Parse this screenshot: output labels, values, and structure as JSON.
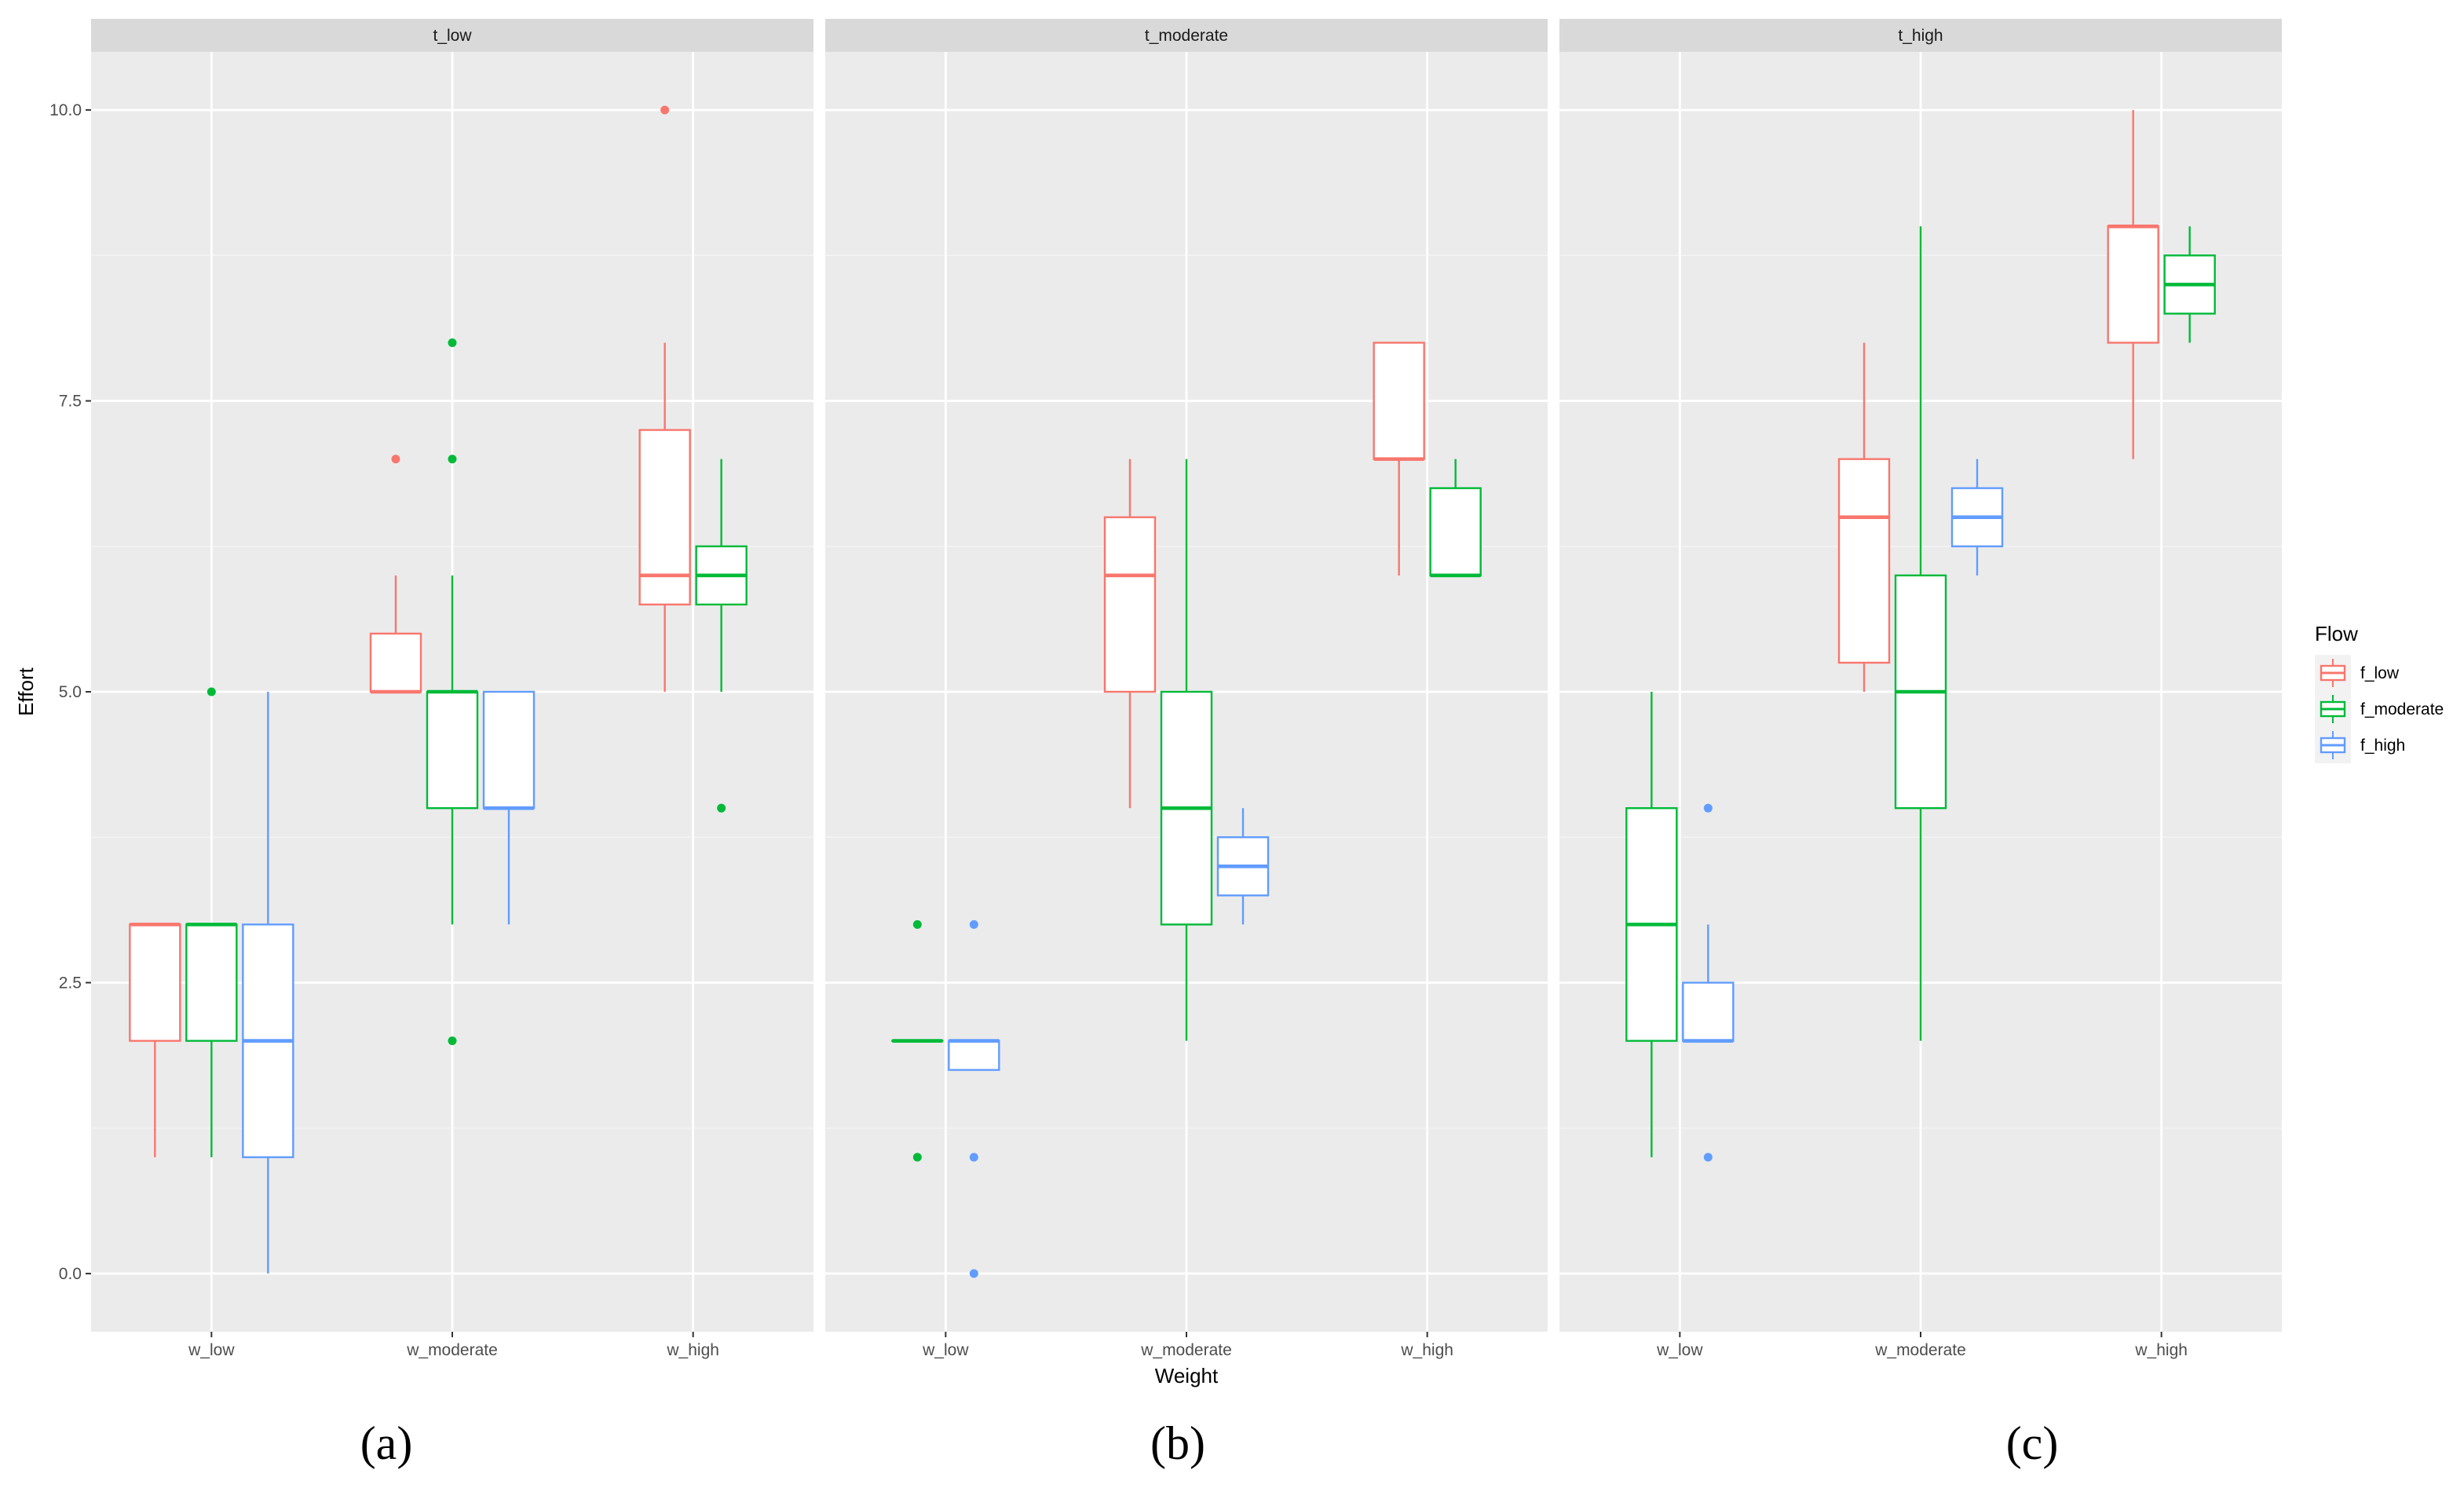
{
  "chart_data": {
    "type": "boxplot",
    "facets": [
      "t_low",
      "t_moderate",
      "t_high"
    ],
    "captions": [
      "(a)",
      "(b)",
      "(c)"
    ],
    "categories": [
      "w_low",
      "w_moderate",
      "w_high"
    ],
    "xlabel": "Weight",
    "ylabel": "Effort",
    "ylim": [
      -0.5,
      10.5
    ],
    "yticks": [
      0,
      2.5,
      5,
      7.5,
      10
    ],
    "ytick_labels": [
      "0.0",
      "2.5",
      "5.0",
      "7.5",
      "10.0"
    ],
    "legend": {
      "title": "Flow",
      "items": [
        {
          "name": "f_low",
          "color": "#f8766d"
        },
        {
          "name": "f_moderate",
          "color": "#00ba38"
        },
        {
          "name": "f_high",
          "color": "#619cff"
        }
      ]
    },
    "boxes": [
      {
        "facet": "t_low",
        "category": "w_low",
        "flow": "f_low",
        "lower_whisker": 1,
        "q1": 2,
        "median": 3,
        "q3": 3,
        "upper_whisker": 3,
        "outliers": []
      },
      {
        "facet": "t_low",
        "category": "w_low",
        "flow": "f_moderate",
        "lower_whisker": 1,
        "q1": 2,
        "median": 3,
        "q3": 3,
        "upper_whisker": 3,
        "outliers": [
          5
        ]
      },
      {
        "facet": "t_low",
        "category": "w_low",
        "flow": "f_high",
        "lower_whisker": 0,
        "q1": 1,
        "median": 2,
        "q3": 3,
        "upper_whisker": 5,
        "outliers": []
      },
      {
        "facet": "t_low",
        "category": "w_moderate",
        "flow": "f_low",
        "lower_whisker": 5,
        "q1": 5,
        "median": 5,
        "q3": 5.5,
        "upper_whisker": 6,
        "outliers": [
          7
        ]
      },
      {
        "facet": "t_low",
        "category": "w_moderate",
        "flow": "f_moderate",
        "lower_whisker": 3,
        "q1": 4,
        "median": 5,
        "q3": 5,
        "upper_whisker": 6,
        "outliers": [
          2,
          7,
          8
        ]
      },
      {
        "facet": "t_low",
        "category": "w_moderate",
        "flow": "f_high",
        "lower_whisker": 3,
        "q1": 4,
        "median": 4,
        "q3": 5,
        "upper_whisker": 5,
        "outliers": []
      },
      {
        "facet": "t_low",
        "category": "w_high",
        "flow": "f_low",
        "lower_whisker": 5,
        "q1": 5.75,
        "median": 6,
        "q3": 7.25,
        "upper_whisker": 8,
        "outliers": [
          10
        ]
      },
      {
        "facet": "t_low",
        "category": "w_high",
        "flow": "f_moderate",
        "lower_whisker": 5,
        "q1": 5.75,
        "median": 6,
        "q3": 6.25,
        "upper_whisker": 7,
        "outliers": [
          4
        ]
      },
      {
        "facet": "t_moderate",
        "category": "w_low",
        "flow": "f_moderate",
        "lower_whisker": 2,
        "q1": 2,
        "median": 2,
        "q3": 2,
        "upper_whisker": 2,
        "outliers": [
          1,
          3
        ]
      },
      {
        "facet": "t_moderate",
        "category": "w_low",
        "flow": "f_high",
        "lower_whisker": 1.75,
        "q1": 1.75,
        "median": 2,
        "q3": 2,
        "upper_whisker": 2,
        "outliers": [
          0,
          1,
          3
        ]
      },
      {
        "facet": "t_moderate",
        "category": "w_moderate",
        "flow": "f_low",
        "lower_whisker": 4,
        "q1": 5,
        "median": 6,
        "q3": 6.5,
        "upper_whisker": 7,
        "outliers": []
      },
      {
        "facet": "t_moderate",
        "category": "w_moderate",
        "flow": "f_moderate",
        "lower_whisker": 2,
        "q1": 3,
        "median": 4,
        "q3": 5,
        "upper_whisker": 7,
        "outliers": []
      },
      {
        "facet": "t_moderate",
        "category": "w_moderate",
        "flow": "f_high",
        "lower_whisker": 3,
        "q1": 3.25,
        "median": 3.5,
        "q3": 3.75,
        "upper_whisker": 4,
        "outliers": []
      },
      {
        "facet": "t_moderate",
        "category": "w_high",
        "flow": "f_low",
        "lower_whisker": 6,
        "q1": 7,
        "median": 7,
        "q3": 8,
        "upper_whisker": 8,
        "outliers": []
      },
      {
        "facet": "t_moderate",
        "category": "w_high",
        "flow": "f_moderate",
        "lower_whisker": 6,
        "q1": 6,
        "median": 6,
        "q3": 6.75,
        "upper_whisker": 7,
        "outliers": []
      },
      {
        "facet": "t_high",
        "category": "w_low",
        "flow": "f_moderate",
        "lower_whisker": 1,
        "q1": 2,
        "median": 3,
        "q3": 4,
        "upper_whisker": 5,
        "outliers": []
      },
      {
        "facet": "t_high",
        "category": "w_low",
        "flow": "f_high",
        "lower_whisker": 2,
        "q1": 2,
        "median": 2,
        "q3": 2.5,
        "upper_whisker": 3,
        "outliers": [
          1,
          4
        ]
      },
      {
        "facet": "t_high",
        "category": "w_moderate",
        "flow": "f_low",
        "lower_whisker": 5,
        "q1": 5.25,
        "median": 6.5,
        "q3": 7,
        "upper_whisker": 8,
        "outliers": []
      },
      {
        "facet": "t_high",
        "category": "w_moderate",
        "flow": "f_moderate",
        "lower_whisker": 2,
        "q1": 4,
        "median": 5,
        "q3": 6,
        "upper_whisker": 9,
        "outliers": []
      },
      {
        "facet": "t_high",
        "category": "w_moderate",
        "flow": "f_high",
        "lower_whisker": 6,
        "q1": 6.25,
        "median": 6.5,
        "q3": 6.75,
        "upper_whisker": 7,
        "outliers": []
      },
      {
        "facet": "t_high",
        "category": "w_high",
        "flow": "f_low",
        "lower_whisker": 7,
        "q1": 8,
        "median": 9,
        "q3": 9,
        "upper_whisker": 10,
        "outliers": []
      },
      {
        "facet": "t_high",
        "category": "w_high",
        "flow": "f_moderate",
        "lower_whisker": 8,
        "q1": 8.25,
        "median": 8.5,
        "q3": 8.75,
        "upper_whisker": 9,
        "outliers": []
      }
    ]
  }
}
